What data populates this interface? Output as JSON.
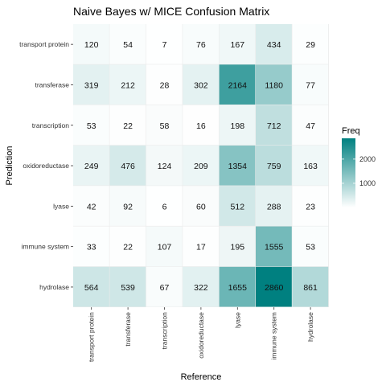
{
  "chart_data": {
    "type": "heatmap",
    "title": "Naive Bayes w/ MICE Confusion Matrix",
    "xlabel": "Reference",
    "ylabel": "Prediction",
    "x_categories": [
      "transport protein",
      "transferase",
      "transcription",
      "oxidoreductase",
      "lyase",
      "immune system",
      "hydrolase"
    ],
    "y_categories": [
      "transport protein",
      "transferase",
      "transcription",
      "oxidoreductase",
      "lyase",
      "immune system",
      "hydrolase"
    ],
    "values": [
      [
        120,
        54,
        7,
        76,
        167,
        434,
        29
      ],
      [
        319,
        212,
        28,
        302,
        2164,
        1180,
        77
      ],
      [
        53,
        22,
        58,
        16,
        198,
        712,
        47
      ],
      [
        249,
        476,
        124,
        209,
        1354,
        759,
        163
      ],
      [
        42,
        92,
        6,
        60,
        512,
        288,
        23
      ],
      [
        33,
        22,
        107,
        17,
        195,
        1555,
        53
      ],
      [
        564,
        539,
        67,
        322,
        1655,
        2860,
        861
      ]
    ],
    "legend": {
      "title": "Freq",
      "ticks": [
        1000,
        2000
      ],
      "placement": "right"
    },
    "value_range": [
      0,
      2860
    ],
    "color_low": "#ffffff",
    "color_high": "#008080",
    "panel_background": "#ebebeb"
  }
}
